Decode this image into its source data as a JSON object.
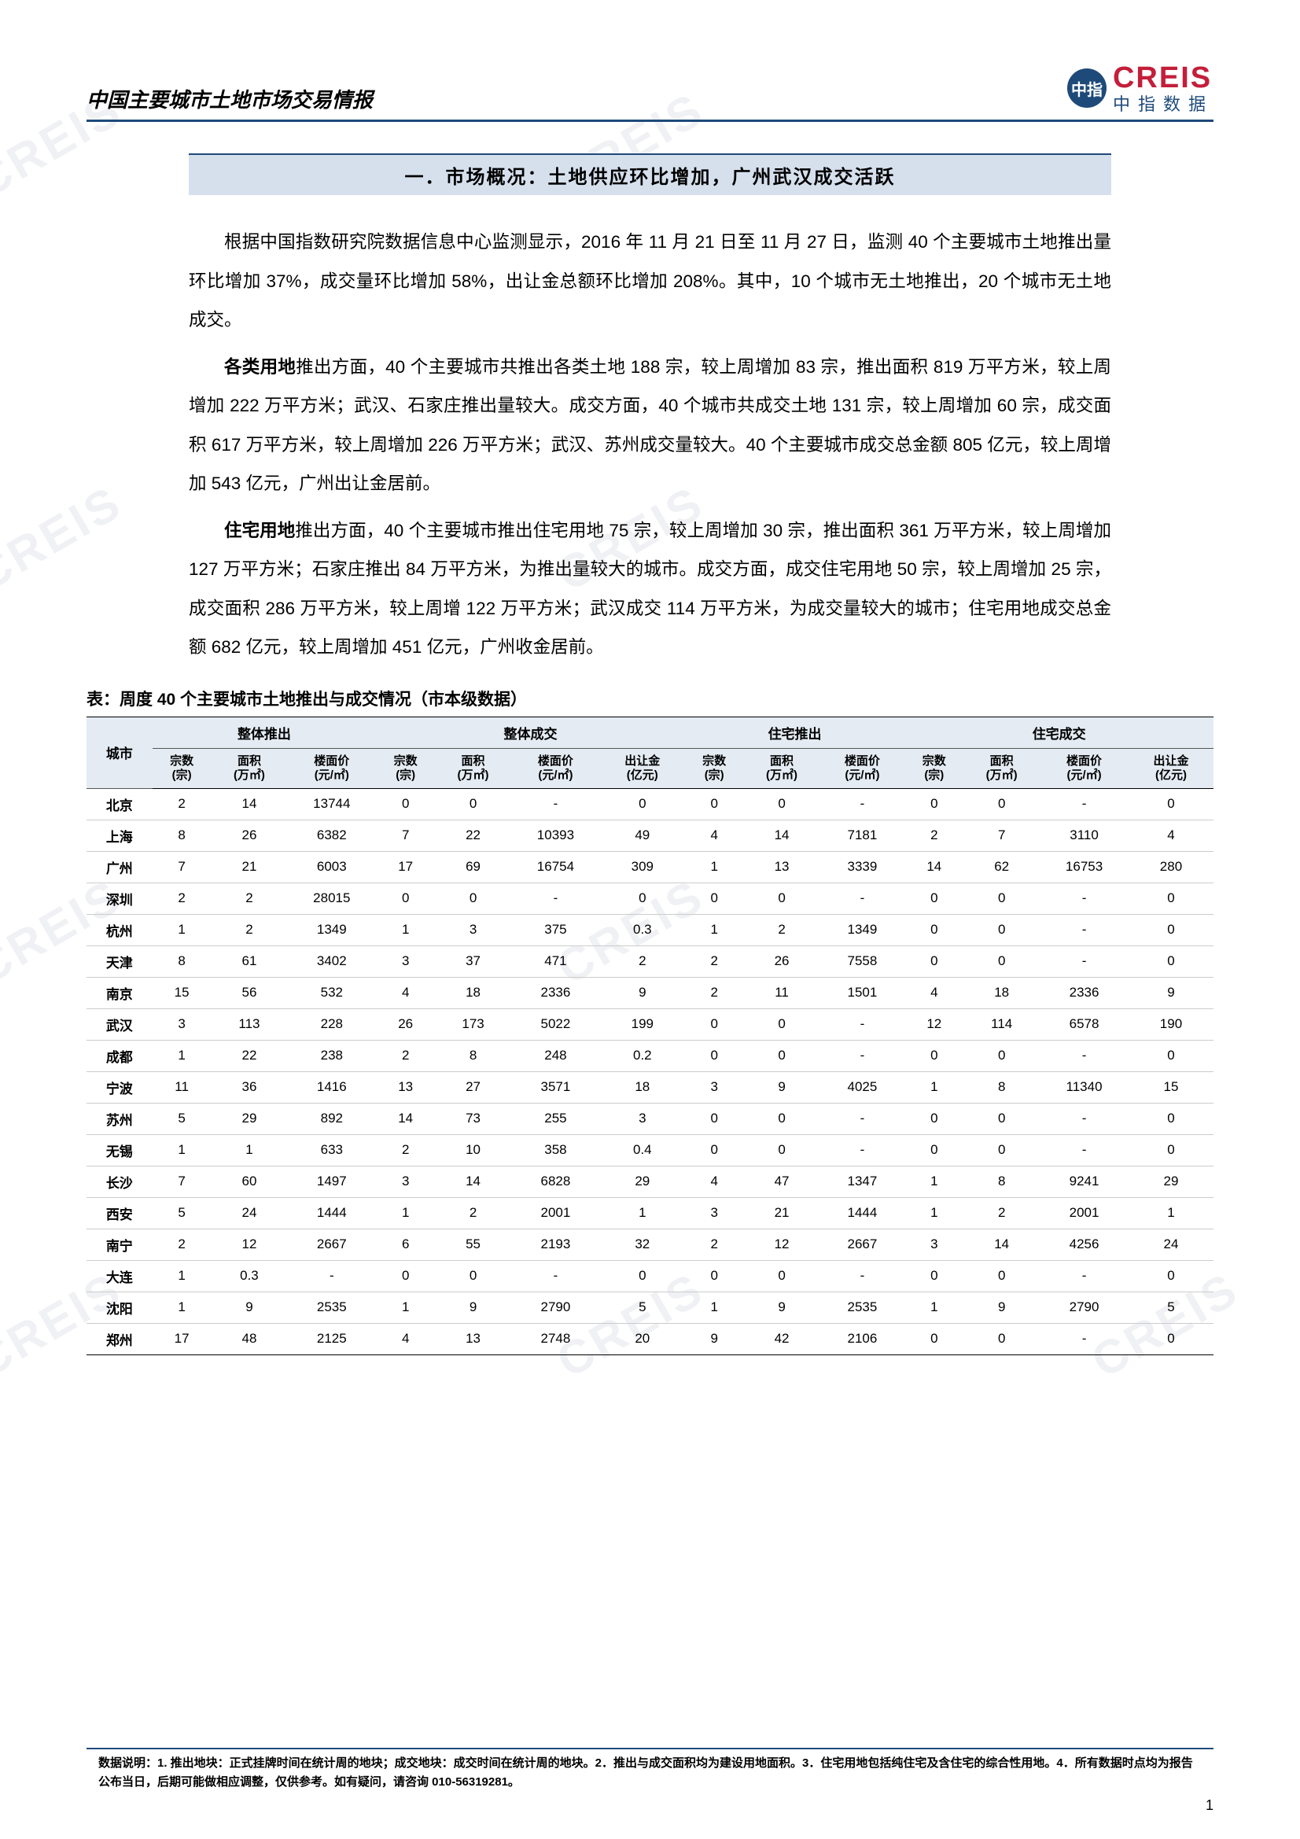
{
  "header": {
    "title": "中国主要城市土地市场交易情报",
    "logo_en": "CREIS",
    "logo_cn": "中指数据",
    "logo_badge": "中指"
  },
  "section": {
    "heading": "一．市场概况：土地供应环比增加，广州武汉成交活跃"
  },
  "paragraphs": {
    "p1": "根据中国指数研究院数据信息中心监测显示，2016 年 11 月 21 日至 11 月 27 日，监测 40 个主要城市土地推出量环比增加 37%，成交量环比增加 58%，出让金总额环比增加 208%。其中，10 个城市无土地推出，20 个城市无土地成交。",
    "p2a": "各类用地",
    "p2b": "推出方面，40 个主要城市共推出各类土地 188 宗，较上周增加 83 宗，推出面积 819 万平方米，较上周增加 222 万平方米；武汉、石家庄推出量较大。成交方面，40 个城市共成交土地 131 宗，较上周增加 60 宗，成交面积 617 万平方米，较上周增加 226 万平方米；武汉、苏州成交量较大。40 个主要城市成交总金额 805 亿元，较上周增加 543 亿元，广州出让金居前。",
    "p3a": "住宅用地",
    "p3b": "推出方面，40 个主要城市推出住宅用地 75 宗，较上周增加 30 宗，推出面积 361 万平方米，较上周增加 127 万平方米；石家庄推出 84 万平方米，为推出量较大的城市。成交方面，成交住宅用地 50 宗，较上周增加 25 宗，成交面积 286 万平方米，较上周增 122 万平方米；武汉成交 114 万平方米，为成交量较大的城市；住宅用地成交总金额 682 亿元，较上周增加 451 亿元，广州收金居前。"
  },
  "table": {
    "title": "表：周度 40 个主要城市土地推出与成交情况（市本级数据）",
    "groups": [
      "整体推出",
      "整体成交",
      "住宅推出",
      "住宅成交"
    ],
    "city_label": "城市",
    "sub_cols": {
      "zs": "宗数\n(宗)",
      "mj": "面积\n(万㎡)",
      "lmj": "楼面价\n(元/㎡)",
      "crj": "出让金\n(亿元)"
    },
    "rows": [
      {
        "city": "北京",
        "d": [
          "2",
          "14",
          "13744",
          "0",
          "0",
          "-",
          "0",
          "0",
          "0",
          "-",
          "0",
          "0",
          "-",
          "0"
        ]
      },
      {
        "city": "上海",
        "d": [
          "8",
          "26",
          "6382",
          "7",
          "22",
          "10393",
          "49",
          "4",
          "14",
          "7181",
          "2",
          "7",
          "3110",
          "4"
        ]
      },
      {
        "city": "广州",
        "d": [
          "7",
          "21",
          "6003",
          "17",
          "69",
          "16754",
          "309",
          "1",
          "13",
          "3339",
          "14",
          "62",
          "16753",
          "280"
        ]
      },
      {
        "city": "深圳",
        "d": [
          "2",
          "2",
          "28015",
          "0",
          "0",
          "-",
          "0",
          "0",
          "0",
          "-",
          "0",
          "0",
          "-",
          "0"
        ]
      },
      {
        "city": "杭州",
        "d": [
          "1",
          "2",
          "1349",
          "1",
          "3",
          "375",
          "0.3",
          "1",
          "2",
          "1349",
          "0",
          "0",
          "-",
          "0"
        ]
      },
      {
        "city": "天津",
        "d": [
          "8",
          "61",
          "3402",
          "3",
          "37",
          "471",
          "2",
          "2",
          "26",
          "7558",
          "0",
          "0",
          "-",
          "0"
        ]
      },
      {
        "city": "南京",
        "d": [
          "15",
          "56",
          "532",
          "4",
          "18",
          "2336",
          "9",
          "2",
          "11",
          "1501",
          "4",
          "18",
          "2336",
          "9"
        ]
      },
      {
        "city": "武汉",
        "d": [
          "3",
          "113",
          "228",
          "26",
          "173",
          "5022",
          "199",
          "0",
          "0",
          "-",
          "12",
          "114",
          "6578",
          "190"
        ]
      },
      {
        "city": "成都",
        "d": [
          "1",
          "22",
          "238",
          "2",
          "8",
          "248",
          "0.2",
          "0",
          "0",
          "-",
          "0",
          "0",
          "-",
          "0"
        ]
      },
      {
        "city": "宁波",
        "d": [
          "11",
          "36",
          "1416",
          "13",
          "27",
          "3571",
          "18",
          "3",
          "9",
          "4025",
          "1",
          "8",
          "11340",
          "15"
        ]
      },
      {
        "city": "苏州",
        "d": [
          "5",
          "29",
          "892",
          "14",
          "73",
          "255",
          "3",
          "0",
          "0",
          "-",
          "0",
          "0",
          "-",
          "0"
        ]
      },
      {
        "city": "无锡",
        "d": [
          "1",
          "1",
          "633",
          "2",
          "10",
          "358",
          "0.4",
          "0",
          "0",
          "-",
          "0",
          "0",
          "-",
          "0"
        ]
      },
      {
        "city": "长沙",
        "d": [
          "7",
          "60",
          "1497",
          "3",
          "14",
          "6828",
          "29",
          "4",
          "47",
          "1347",
          "1",
          "8",
          "9241",
          "29"
        ]
      },
      {
        "city": "西安",
        "d": [
          "5",
          "24",
          "1444",
          "1",
          "2",
          "2001",
          "1",
          "3",
          "21",
          "1444",
          "1",
          "2",
          "2001",
          "1"
        ]
      },
      {
        "city": "南宁",
        "d": [
          "2",
          "12",
          "2667",
          "6",
          "55",
          "2193",
          "32",
          "2",
          "12",
          "2667",
          "3",
          "14",
          "4256",
          "24"
        ]
      },
      {
        "city": "大连",
        "d": [
          "1",
          "0.3",
          "-",
          "0",
          "0",
          "-",
          "0",
          "0",
          "0",
          "-",
          "0",
          "0",
          "-",
          "0"
        ]
      },
      {
        "city": "沈阳",
        "d": [
          "1",
          "9",
          "2535",
          "1",
          "9",
          "2790",
          "5",
          "1",
          "9",
          "2535",
          "1",
          "9",
          "2790",
          "5"
        ]
      },
      {
        "city": "郑州",
        "d": [
          "17",
          "48",
          "2125",
          "4",
          "13",
          "2748",
          "20",
          "9",
          "42",
          "2106",
          "0",
          "0",
          "-",
          "0"
        ]
      }
    ]
  },
  "footer": {
    "note": "数据说明：1. 推出地块：正式挂牌时间在统计周的地块；成交地块：成交时间在统计周的地块。2．推出与成交面积均为建设用地面积。3．住宅用地包括纯住宅及含住宅的综合性用地。4．所有数据时点均为报告公布当日，后期可能做相应调整，仅供参考。如有疑问，请咨询 010-56319281。",
    "page": "1"
  },
  "watermark": "CREIS",
  "colors": {
    "brand_blue": "#1e4a7a",
    "brand_red": "#c41e3a",
    "header_bg": "#d6e0ed",
    "thead_bg": "#e4ebf3"
  }
}
